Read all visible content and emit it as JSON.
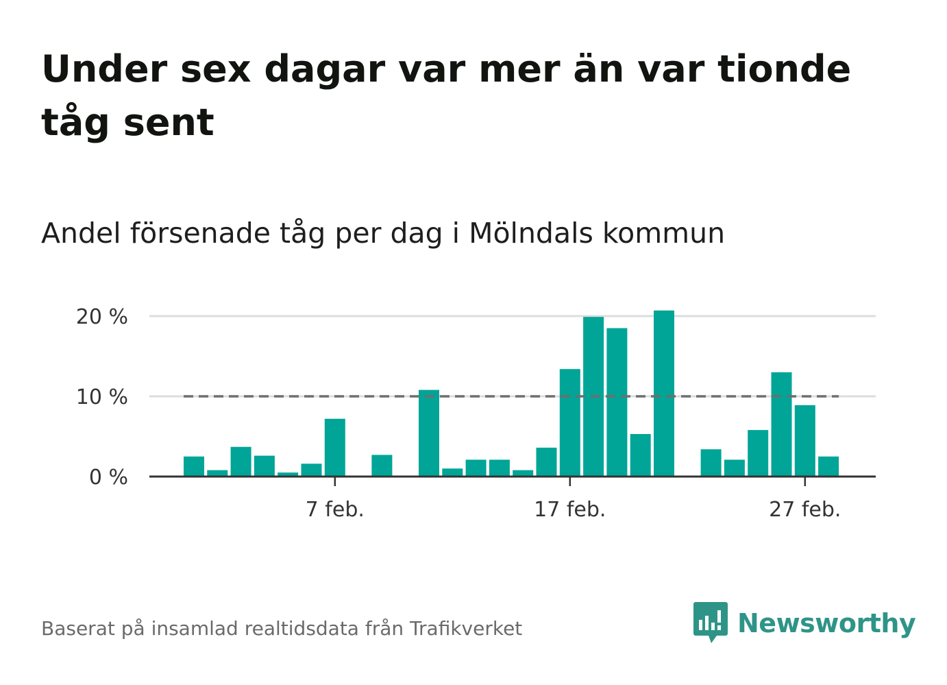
{
  "title": "Under sex dagar var mer än var tionde tåg sent",
  "subtitle": "Andel försenade tåg per dag i Mölndals kommun",
  "source": "Baserat på insamlad realtidsdata från Trafikverket",
  "brand": {
    "name": "Newsworthy",
    "icon": "bar-chart-speech-bubble-icon",
    "color": "#2f9488"
  },
  "colors": {
    "bar": "#00a597",
    "reference_line": "#6e6e6e",
    "gridline": "#dddddd",
    "axis": "#333333"
  },
  "chart_data": {
    "type": "bar",
    "title": "Under sex dagar var mer än var tionde tåg sent",
    "subtitle": "Andel försenade tåg per dag i Mölndals kommun",
    "xlabel": "",
    "ylabel": "",
    "x": [
      "1 feb.",
      "2 feb.",
      "3 feb.",
      "4 feb.",
      "5 feb.",
      "6 feb.",
      "7 feb.",
      "8 feb.",
      "9 feb.",
      "10 feb.",
      "11 feb.",
      "12 feb.",
      "13 feb.",
      "14 feb.",
      "15 feb.",
      "16 feb.",
      "17 feb.",
      "18 feb.",
      "19 feb.",
      "20 feb.",
      "21 feb.",
      "22 feb.",
      "23 feb.",
      "24 feb.",
      "25 feb.",
      "26 feb.",
      "27 feb.",
      "28 feb."
    ],
    "values": [
      2.5,
      0.8,
      3.7,
      2.6,
      0.5,
      1.6,
      7.2,
      0,
      2.7,
      0,
      10.8,
      1.0,
      2.1,
      2.1,
      0.8,
      3.6,
      13.4,
      19.9,
      18.5,
      5.3,
      20.7,
      0,
      3.4,
      2.1,
      5.8,
      13.0,
      8.9,
      2.5
    ],
    "ylim": [
      0,
      22
    ],
    "yticks": [
      0,
      10,
      20
    ],
    "ytick_labels": [
      "0 %",
      "10 %",
      "20 %"
    ],
    "xtick_labels": [
      "7 feb.",
      "17 feb.",
      "27 feb."
    ],
    "xtick_positions": [
      "7 feb.",
      "17 feb.",
      "27 feb."
    ],
    "reference_line": {
      "value": 10,
      "style": "dashed"
    },
    "grid": true,
    "legend": "none"
  }
}
